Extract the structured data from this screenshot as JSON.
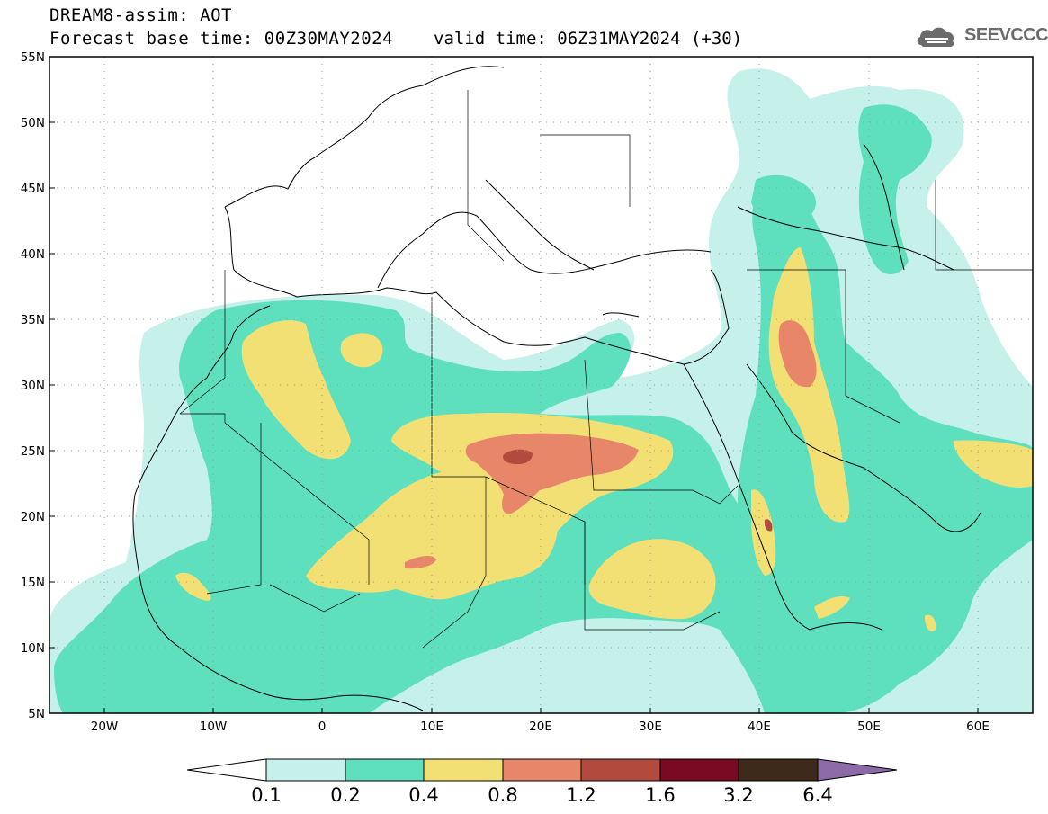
{
  "header": {
    "title_line1": "DREAM8-assim: AOT",
    "title_line2": "Forecast base time: 00Z30MAY2024",
    "valid_time": "valid time: 06Z31MAY2024 (+30)"
  },
  "logo": {
    "text": "SEEVCCC",
    "icon": "cloud-icon",
    "color": "#6b6b6b"
  },
  "map": {
    "lat_labels": [
      "55N",
      "50N",
      "45N",
      "40N",
      "35N",
      "30N",
      "25N",
      "20N",
      "15N",
      "10N",
      "5N"
    ],
    "lon_labels": [
      "20W",
      "10W",
      "0",
      "10E",
      "20E",
      "30E",
      "40E",
      "50E",
      "60E"
    ],
    "extent": {
      "lon_min": -25,
      "lon_max": 65,
      "lat_min": 5,
      "lat_max": 55
    }
  },
  "colorbar": {
    "levels": [
      "0.1",
      "0.2",
      "0.4",
      "0.8",
      "1.2",
      "1.6",
      "3.2",
      "6.4"
    ],
    "colors": [
      "#ffffff",
      "#c6f0ea",
      "#5ee0be",
      "#f3e075",
      "#e8866a",
      "#b34a3e",
      "#7a0a24",
      "#3e2a1a",
      "#8c6aa8"
    ]
  },
  "colors": {
    "c01": "#c6f0ea",
    "c02": "#5ee0be",
    "c04": "#f3e075",
    "c08": "#e8866a",
    "c12": "#b34a3e"
  }
}
